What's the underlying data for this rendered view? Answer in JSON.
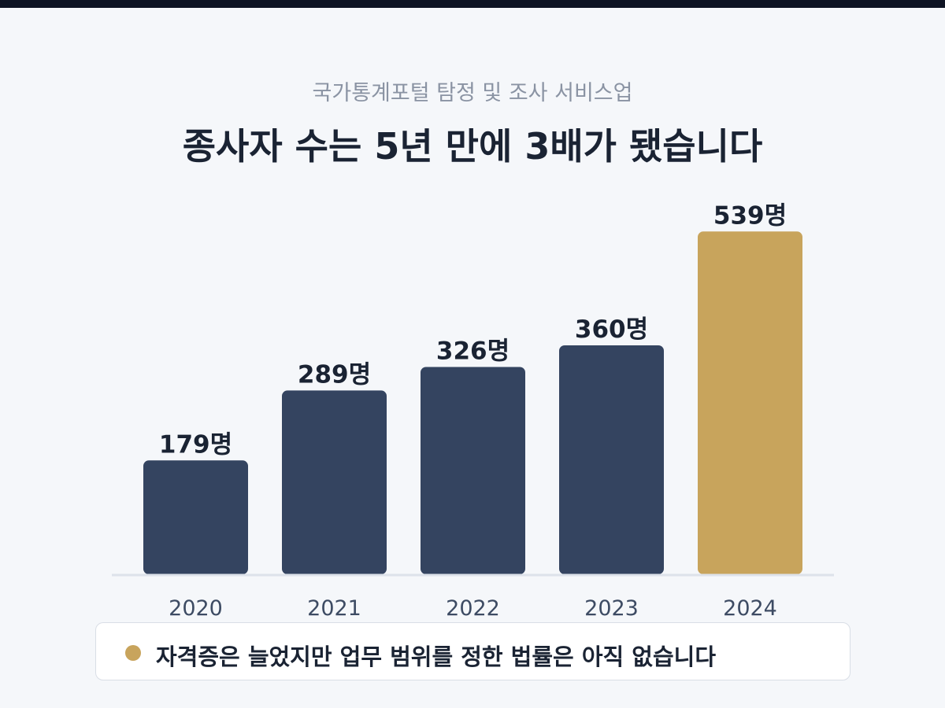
{
  "header": {
    "subtitle": "국가통계포털 탐정 및 조사 서비스업",
    "title": "종사자 수는 5년 만에 3배가 됐습니다"
  },
  "chart_data": {
    "type": "bar",
    "categories": [
      "2020",
      "2021",
      "2022",
      "2023",
      "2024"
    ],
    "values": [
      179,
      289,
      326,
      360,
      539
    ],
    "data_labels": [
      "179명",
      "289명",
      "326명",
      "360명",
      "539명"
    ],
    "ylim": [
      0,
      600
    ],
    "grid": false,
    "bar_color": "#344460",
    "highlight_color": "#c8a45c",
    "highlight_index": 4
  },
  "note": {
    "text": "자격증은 늘었지만 업무 범위를 정한 법률은 아직 없습니다",
    "dot_color": "#c8a45c"
  }
}
